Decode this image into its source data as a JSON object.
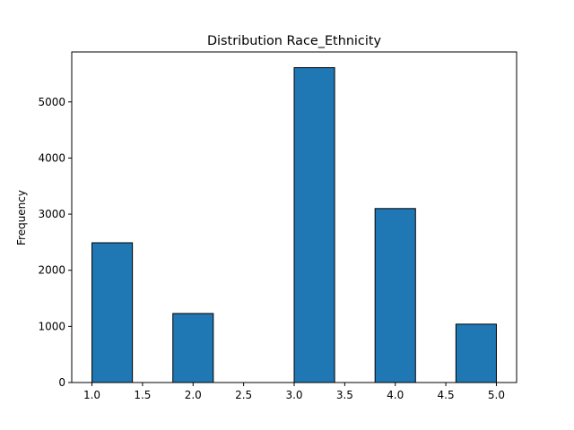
{
  "chart_data": {
    "type": "bar",
    "title": "Distribution Race_Ethnicity",
    "xlabel": "",
    "ylabel": "Frequency",
    "bins": [
      {
        "x0": 1.0,
        "x1": 1.4,
        "count": 2490
      },
      {
        "x0": 1.4,
        "x1": 1.8,
        "count": 0
      },
      {
        "x0": 1.8,
        "x1": 2.2,
        "count": 1230
      },
      {
        "x0": 2.2,
        "x1": 2.6,
        "count": 0
      },
      {
        "x0": 2.6,
        "x1": 3.0,
        "count": 0
      },
      {
        "x0": 3.0,
        "x1": 3.4,
        "count": 5610
      },
      {
        "x0": 3.4,
        "x1": 3.8,
        "count": 0
      },
      {
        "x0": 3.8,
        "x1": 4.2,
        "count": 3100
      },
      {
        "x0": 4.2,
        "x1": 4.6,
        "count": 0
      },
      {
        "x0": 4.6,
        "x1": 5.0,
        "count": 1040
      }
    ],
    "xlim": [
      0.8,
      5.2
    ],
    "ylim": [
      0,
      5890
    ],
    "xticks": [
      "1.0",
      "1.5",
      "2.0",
      "2.5",
      "3.0",
      "3.5",
      "4.0",
      "4.5",
      "5.0"
    ],
    "yticks": [
      "0",
      "1000",
      "2000",
      "3000",
      "4000",
      "5000"
    ],
    "bar_color": "#1f77b4",
    "edge_color": "#000000",
    "grid": false,
    "legend": "none"
  }
}
